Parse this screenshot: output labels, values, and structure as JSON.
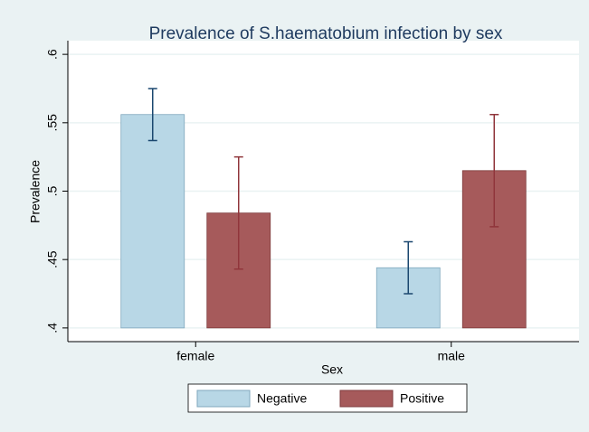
{
  "chart_data": {
    "type": "bar",
    "title": "Prevalence of S.haematobium infection by sex",
    "x_label": "Sex",
    "y_label": "Prevalence",
    "categories": [
      "female",
      "male"
    ],
    "series": [
      {
        "name": "Negative",
        "color": "#b8d7e6",
        "values": [
          0.556,
          0.444
        ],
        "errors": [
          0.019,
          0.019
        ],
        "error_color": "#1a476f"
      },
      {
        "name": "Positive",
        "color": "#a65a5b",
        "values": [
          0.484,
          0.515
        ],
        "errors": [
          0.041,
          0.041
        ],
        "error_color": "#90353b"
      }
    ],
    "ylim": [
      0.39,
      0.61
    ],
    "yticks": [
      {
        "value": 0.4,
        "label": ".4"
      },
      {
        "value": 0.45,
        "label": ".45"
      },
      {
        "value": 0.5,
        "label": ".5"
      },
      {
        "value": 0.55,
        "label": ".55"
      },
      {
        "value": 0.6,
        "label": ".6"
      }
    ],
    "grid": true,
    "legend": "bottom"
  }
}
